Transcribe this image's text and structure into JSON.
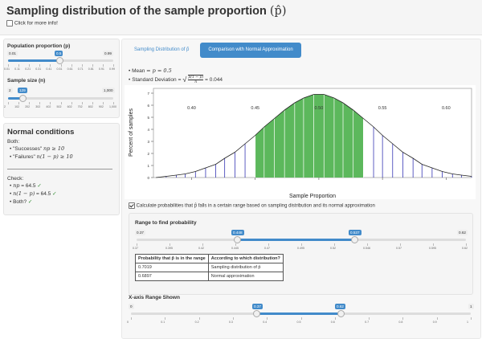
{
  "app": {
    "title_text": "Sampling distribution of the sample proportion",
    "title_symbol": "(p̂)",
    "more_info_label": "Click for more info!"
  },
  "sidebar": {
    "pop_prop": {
      "label": "Population proportion (p)",
      "min": "0.01",
      "max": "0.99",
      "value": "0.5",
      "ticks": [
        "0.01",
        "0.11",
        "0.21",
        "0.31",
        "0.41",
        "0.51",
        "0.61",
        "0.71",
        "0.81",
        "0.91",
        "0.99"
      ]
    },
    "sample_size": {
      "label": "Sample size (n)",
      "min": "2",
      "max": "1,000",
      "value": "129",
      "ticks": [
        "2",
        "102",
        "202",
        "302",
        "402",
        "502",
        "602",
        "702",
        "802",
        "902",
        "1,000"
      ]
    },
    "conditions": {
      "heading": "Normal conditions",
      "both_label": "Both:",
      "successes_prefix": "\"Successes\"",
      "successes_math": "np ≥ 10",
      "failures_prefix": "\"Failures\"",
      "failures_math": "n(1 − p) ≥ 10",
      "check_label": "Check:",
      "check1_math": "np",
      "check1_val": "= 64.5",
      "check2_math": "n(1 − p)",
      "check2_val": "= 64.5",
      "check3": "Both?",
      "check_mark": "✓"
    }
  },
  "tabs": {
    "tab1": "Sampling Distribution of p̂",
    "tab2": "Comparison with Normal Approximation"
  },
  "stats": {
    "mean_label": "Mean",
    "mean_math": "= p = 0.5",
    "sd_label": "Standard Deviation",
    "sd_math_pre": "=",
    "sd_num": "p(1 − p)",
    "sd_den": "n",
    "sd_val": "= 0.044"
  },
  "calc_checkbox_label": "Calculate probabilities that p̂ falls in a certain range based on sampling distribution and its normal approximation",
  "range_panel": {
    "label": "Range to find probability",
    "min": "0.37",
    "max": "0.62",
    "lo": "0.448",
    "hi": "0.537",
    "ticks": [
      "0.37",
      "0.395",
      "0.42",
      "0.445",
      "0.47",
      "0.495",
      "0.52",
      "0.546",
      "0.57",
      "0.595",
      "0.62"
    ]
  },
  "prob_table": {
    "headers": [
      "Probability that p̂ is in the range",
      "According to which distribution?"
    ],
    "rows": [
      [
        "0.7019",
        "Sampling distribution of p̂"
      ],
      [
        "0.6897",
        "Normal approximation"
      ]
    ]
  },
  "xaxis_range": {
    "label": "X-axis Range Shown",
    "min": "0",
    "max": "1",
    "lo": "0.37",
    "hi": "0.62",
    "ticks": [
      "0",
      "0.1",
      "0.2",
      "0.3",
      "0.4",
      "0.5",
      "0.6",
      "0.7",
      "0.8",
      "0.9",
      "1"
    ]
  },
  "colors": {
    "accent": "#428bca",
    "shade": "#5cb85c",
    "bar": "#1a1aaa",
    "check": "#2e8b2e"
  },
  "chart_data": {
    "type": "bar",
    "xlabel": "Sample Proportion",
    "ylabel": "Percent of samples",
    "xlim": [
      0.37,
      0.62
    ],
    "ylim": [
      0,
      7
    ],
    "x_ticks": [
      "0.40",
      "0.45",
      "0.50",
      "0.55",
      "0.60"
    ],
    "y_ticks": [
      "0",
      "1",
      "2",
      "3",
      "4",
      "5",
      "6",
      "7"
    ],
    "grid": false,
    "shaded_range": [
      0.448,
      0.537
    ],
    "series": [
      {
        "values_x": [
          0.372,
          0.38,
          0.388,
          0.395,
          0.403,
          0.411,
          0.419,
          0.426,
          0.434,
          0.442,
          0.45,
          0.457,
          0.465,
          0.473,
          0.481,
          0.488,
          0.496,
          0.504,
          0.512,
          0.519,
          0.527,
          0.535,
          0.543,
          0.55,
          0.558,
          0.566,
          0.574,
          0.581,
          0.589,
          0.597,
          0.605,
          0.612,
          0.62
        ],
        "values_y": [
          0.0,
          0.1,
          0.2,
          0.3,
          0.5,
          0.8,
          1.1,
          1.6,
          2.1,
          2.8,
          3.5,
          4.2,
          4.9,
          5.6,
          6.2,
          6.6,
          6.9,
          6.9,
          6.6,
          6.2,
          5.6,
          4.9,
          4.2,
          3.5,
          2.8,
          2.1,
          1.6,
          1.1,
          0.8,
          0.5,
          0.3,
          0.2,
          0.1
        ]
      }
    ]
  }
}
